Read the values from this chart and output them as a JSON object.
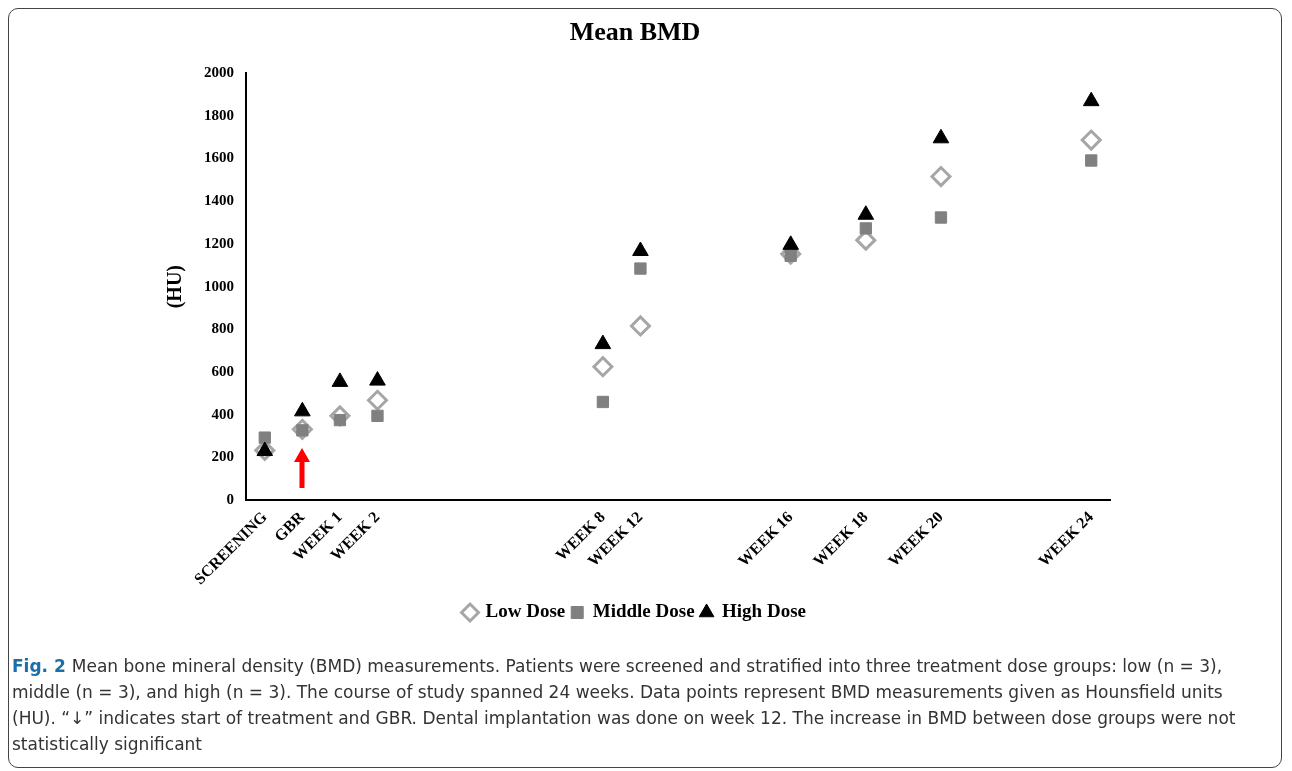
{
  "chart_data": {
    "type": "scatter",
    "title": "Mean BMD",
    "ylabel": "(HU)",
    "categories": [
      "SCREENING",
      "GBR",
      "WEEK 1",
      "WEEK 2",
      null,
      null,
      null,
      null,
      null,
      "WEEK 8",
      "WEEK 12",
      null,
      null,
      null,
      "WEEK 16",
      null,
      "WEEK 18",
      null,
      "WEEK 20",
      null,
      null,
      null,
      "WEEK 24"
    ],
    "series": [
      {
        "name": "Low Dose",
        "color": "#a6a6a6",
        "marker": "diamond",
        "values": [
          233,
          332,
          395,
          468,
          null,
          null,
          null,
          null,
          null,
          625,
          816,
          null,
          null,
          null,
          1153,
          null,
          1218,
          null,
          1516,
          null,
          null,
          null,
          1687
        ]
      },
      {
        "name": "Middle Dose",
        "color": "#808080",
        "marker": "square",
        "values": [
          293,
          327,
          375,
          395,
          null,
          null,
          null,
          null,
          null,
          460,
          1085,
          null,
          null,
          null,
          1145,
          null,
          1273,
          null,
          1324,
          null,
          null,
          null,
          1591
        ]
      },
      {
        "name": "High Dose",
        "color": "#000000",
        "marker": "triangle",
        "values": [
          230,
          416,
          554,
          560,
          null,
          null,
          null,
          null,
          null,
          731,
          1167,
          null,
          null,
          null,
          1196,
          null,
          1337,
          null,
          1695,
          null,
          null,
          null,
          1869
        ]
      }
    ],
    "ylim": [
      0,
      2000
    ],
    "yticks": [
      0,
      200,
      400,
      600,
      800,
      1000,
      1200,
      1400,
      1600,
      1800,
      2000
    ],
    "grid": false,
    "legend": "bottom",
    "annotations": [
      "Fig. 2",
      "Mean bone mineral density (BMD) measurements. Patients were screened and stratified into three treatment dose groups: low (n = 3), middle (n = 3), and high (n = 3). The course of study spanned 24 weeks. Data points represent BMD measurements given as Hounsfield units (HU). “↓” indicates start of treatment and GBR. Dental implantation was done on week 12. The increase in BMD between dose groups were not statistically significant"
    ]
  }
}
